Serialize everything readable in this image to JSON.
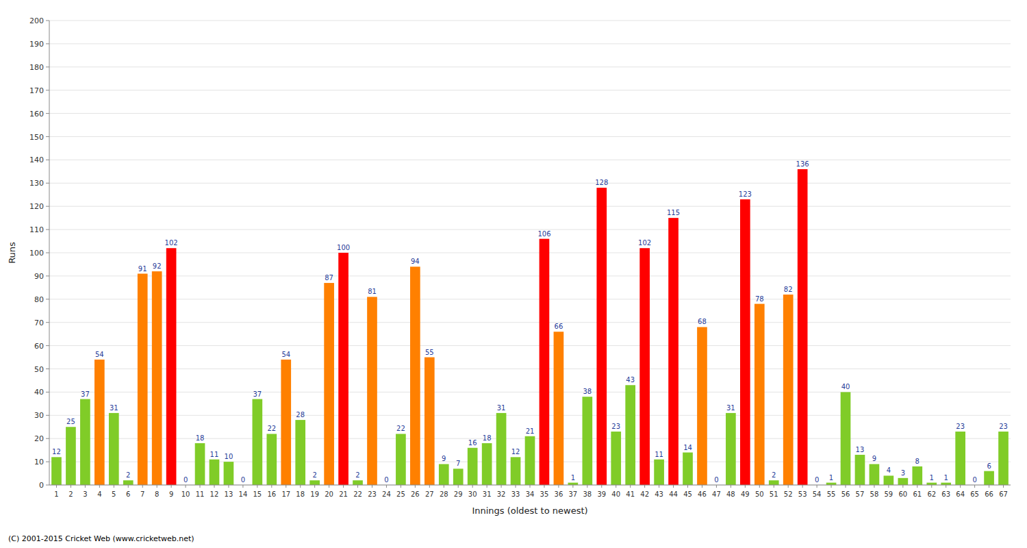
{
  "chart_data": {
    "type": "bar",
    "xlabel": "Innings (oldest to newest)",
    "ylabel": "Runs",
    "categories": [
      "1",
      "2",
      "3",
      "4",
      "5",
      "6",
      "7",
      "8",
      "9",
      "10",
      "11",
      "12",
      "13",
      "14",
      "15",
      "16",
      "17",
      "18",
      "19",
      "20",
      "21",
      "22",
      "23",
      "24",
      "25",
      "26",
      "27",
      "28",
      "29",
      "30",
      "31",
      "32",
      "33",
      "34",
      "35",
      "36",
      "37",
      "38",
      "39",
      "40",
      "41",
      "42",
      "43",
      "44",
      "45",
      "46",
      "47",
      "48",
      "49",
      "50",
      "51",
      "52",
      "53",
      "54",
      "55",
      "56",
      "57",
      "58",
      "59",
      "60",
      "61",
      "62",
      "63",
      "64",
      "65",
      "66",
      "67"
    ],
    "values": [
      12,
      25,
      37,
      54,
      31,
      2,
      91,
      92,
      102,
      0,
      18,
      11,
      10,
      0,
      37,
      22,
      54,
      28,
      2,
      87,
      100,
      2,
      81,
      0,
      22,
      94,
      55,
      9,
      7,
      16,
      18,
      31,
      12,
      21,
      106,
      66,
      1,
      38,
      128,
      23,
      43,
      102,
      11,
      115,
      14,
      68,
      0,
      31,
      123,
      78,
      2,
      82,
      136,
      0,
      1,
      40,
      13,
      9,
      4,
      3,
      8,
      1,
      1,
      23,
      0,
      6,
      23
    ],
    "colors": [
      "#80cc28",
      "#80cc28",
      "#80cc28",
      "#ff8000",
      "#80cc28",
      "#80cc28",
      "#ff8000",
      "#ff8000",
      "#ff0000",
      "#80cc28",
      "#80cc28",
      "#80cc28",
      "#80cc28",
      "#80cc28",
      "#80cc28",
      "#80cc28",
      "#ff8000",
      "#80cc28",
      "#80cc28",
      "#ff8000",
      "#ff0000",
      "#80cc28",
      "#ff8000",
      "#80cc28",
      "#80cc28",
      "#ff8000",
      "#ff8000",
      "#80cc28",
      "#80cc28",
      "#80cc28",
      "#80cc28",
      "#80cc28",
      "#80cc28",
      "#80cc28",
      "#ff0000",
      "#ff8000",
      "#80cc28",
      "#80cc28",
      "#ff0000",
      "#80cc28",
      "#80cc28",
      "#ff0000",
      "#80cc28",
      "#ff0000",
      "#80cc28",
      "#ff8000",
      "#80cc28",
      "#80cc28",
      "#ff0000",
      "#ff8000",
      "#80cc28",
      "#ff8000",
      "#ff0000",
      "#80cc28",
      "#80cc28",
      "#80cc28",
      "#80cc28",
      "#80cc28",
      "#80cc28",
      "#80cc28",
      "#80cc28",
      "#80cc28",
      "#80cc28",
      "#80cc28",
      "#80cc28",
      "#80cc28",
      "#80cc28"
    ],
    "ylim": [
      0,
      200
    ],
    "yticks": [
      0,
      10,
      20,
      30,
      40,
      50,
      60,
      70,
      80,
      90,
      100,
      110,
      120,
      130,
      140,
      150,
      160,
      170,
      180,
      190,
      200
    ],
    "grid": true,
    "data_labels": true,
    "annotations": [
      "(C) 2001-2015 Cricket Web (www.cricketweb.net)"
    ]
  }
}
